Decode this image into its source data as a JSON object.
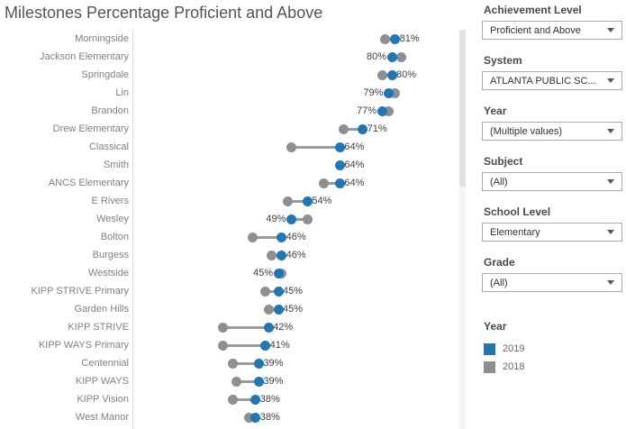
{
  "title": "Milestones Percentage Proficient and Above",
  "colors": {
    "blue_2019": "#1f77b4",
    "gray_2018": "#8b9095",
    "connector": "#9b9b9b",
    "axis_line": "#dcdcdc",
    "title_text": "#555555",
    "row_label_text": "#828282",
    "pct_label_text": "#414141"
  },
  "chart_data": {
    "type": "dumbbell",
    "orientation": "horizontal",
    "title": "Milestones Percentage Proficient and Above",
    "xlabel": "",
    "ylabel": "",
    "x_axis": {
      "min": 0,
      "max": 100,
      "unit": "%",
      "ticks_visible": false,
      "grid": false
    },
    "legend_position": "right",
    "series_names": [
      "2019",
      "2018"
    ],
    "categories": [
      "Morningside",
      "Jackson Elementary",
      "Springdale",
      "Lin",
      "Brandon",
      "Drew Elementary",
      "Classical",
      "Smith",
      "ANCS Elementary",
      "E Rivers",
      "Wesley",
      "Bolton",
      "Burgess",
      "Westside",
      "KIPP STRIVE Primary",
      "Garden Hills",
      "KIPP STRIVE",
      "KIPP WAYS Primary",
      "Centennial",
      "KIPP WAYS",
      "KIPP Vision",
      "West Manor"
    ],
    "rows": [
      {
        "school": "Morningside",
        "y2019": 81,
        "y2018": 78,
        "label": "81%",
        "label_side": "right"
      },
      {
        "school": "Jackson Elementary",
        "y2019": 80,
        "y2018": 83,
        "label": "80%",
        "label_side": "left"
      },
      {
        "school": "Springdale",
        "y2019": 80,
        "y2018": 77,
        "label": "80%",
        "label_side": "right"
      },
      {
        "school": "Lin",
        "y2019": 79,
        "y2018": 81,
        "label": "79%",
        "label_side": "left"
      },
      {
        "school": "Brandon",
        "y2019": 77,
        "y2018": 79,
        "label": "77%",
        "label_side": "left"
      },
      {
        "school": "Drew Elementary",
        "y2019": 71,
        "y2018": 65,
        "label": "71%",
        "label_side": "right"
      },
      {
        "school": "Classical",
        "y2019": 64,
        "y2018": 49,
        "label": "64%",
        "label_side": "right"
      },
      {
        "school": "Smith",
        "y2019": 64,
        "y2018": null,
        "label": "64%",
        "label_side": "right"
      },
      {
        "school": "ANCS Elementary",
        "y2019": 64,
        "y2018": 59,
        "label": "64%",
        "label_side": "right"
      },
      {
        "school": "E Rivers",
        "y2019": 54,
        "y2018": 48,
        "label": "54%",
        "label_side": "right"
      },
      {
        "school": "Wesley",
        "y2019": 49,
        "y2018": 54,
        "label": "49%",
        "label_side": "left"
      },
      {
        "school": "Bolton",
        "y2019": 46,
        "y2018": 37,
        "label": "46%",
        "label_side": "right"
      },
      {
        "school": "Burgess",
        "y2019": 46,
        "y2018": 43,
        "label": "46%",
        "label_side": "right"
      },
      {
        "school": "Westside",
        "y2019": 45,
        "y2018": 46,
        "label": "45%",
        "label_side": "left"
      },
      {
        "school": "KIPP STRIVE Primary",
        "y2019": 45,
        "y2018": 41,
        "label": "45%",
        "label_side": "right"
      },
      {
        "school": "Garden Hills",
        "y2019": 45,
        "y2018": 42,
        "label": "45%",
        "label_side": "right"
      },
      {
        "school": "KIPP STRIVE",
        "y2019": 42,
        "y2018": 28,
        "label": "42%",
        "label_side": "right"
      },
      {
        "school": "KIPP WAYS Primary",
        "y2019": 41,
        "y2018": 28,
        "label": "41%",
        "label_side": "right"
      },
      {
        "school": "Centennial",
        "y2019": 39,
        "y2018": 31,
        "label": "39%",
        "label_side": "right"
      },
      {
        "school": "KIPP WAYS",
        "y2019": 39,
        "y2018": 32,
        "label": "39%",
        "label_side": "right"
      },
      {
        "school": "KIPP Vision",
        "y2019": 38,
        "y2018": 31,
        "label": "38%",
        "label_side": "right"
      },
      {
        "school": "West Manor",
        "y2019": 38,
        "y2018": 36,
        "label": "38%",
        "label_side": "right"
      }
    ]
  },
  "filters": [
    {
      "label": "Achievement Level",
      "value": "Proficient and Above"
    },
    {
      "label": "System",
      "value": "ATLANTA PUBLIC SC..."
    },
    {
      "label": "Year",
      "value": "(Multiple values)"
    },
    {
      "label": "Subject",
      "value": "(All)"
    },
    {
      "label": "School Level",
      "value": "Elementary"
    },
    {
      "label": "Grade",
      "value": "(All)"
    }
  ],
  "legend": {
    "title": "Year",
    "items": [
      {
        "label": "2019",
        "color": "#1f77b4"
      },
      {
        "label": "2018",
        "color": "#8b9095"
      }
    ]
  }
}
